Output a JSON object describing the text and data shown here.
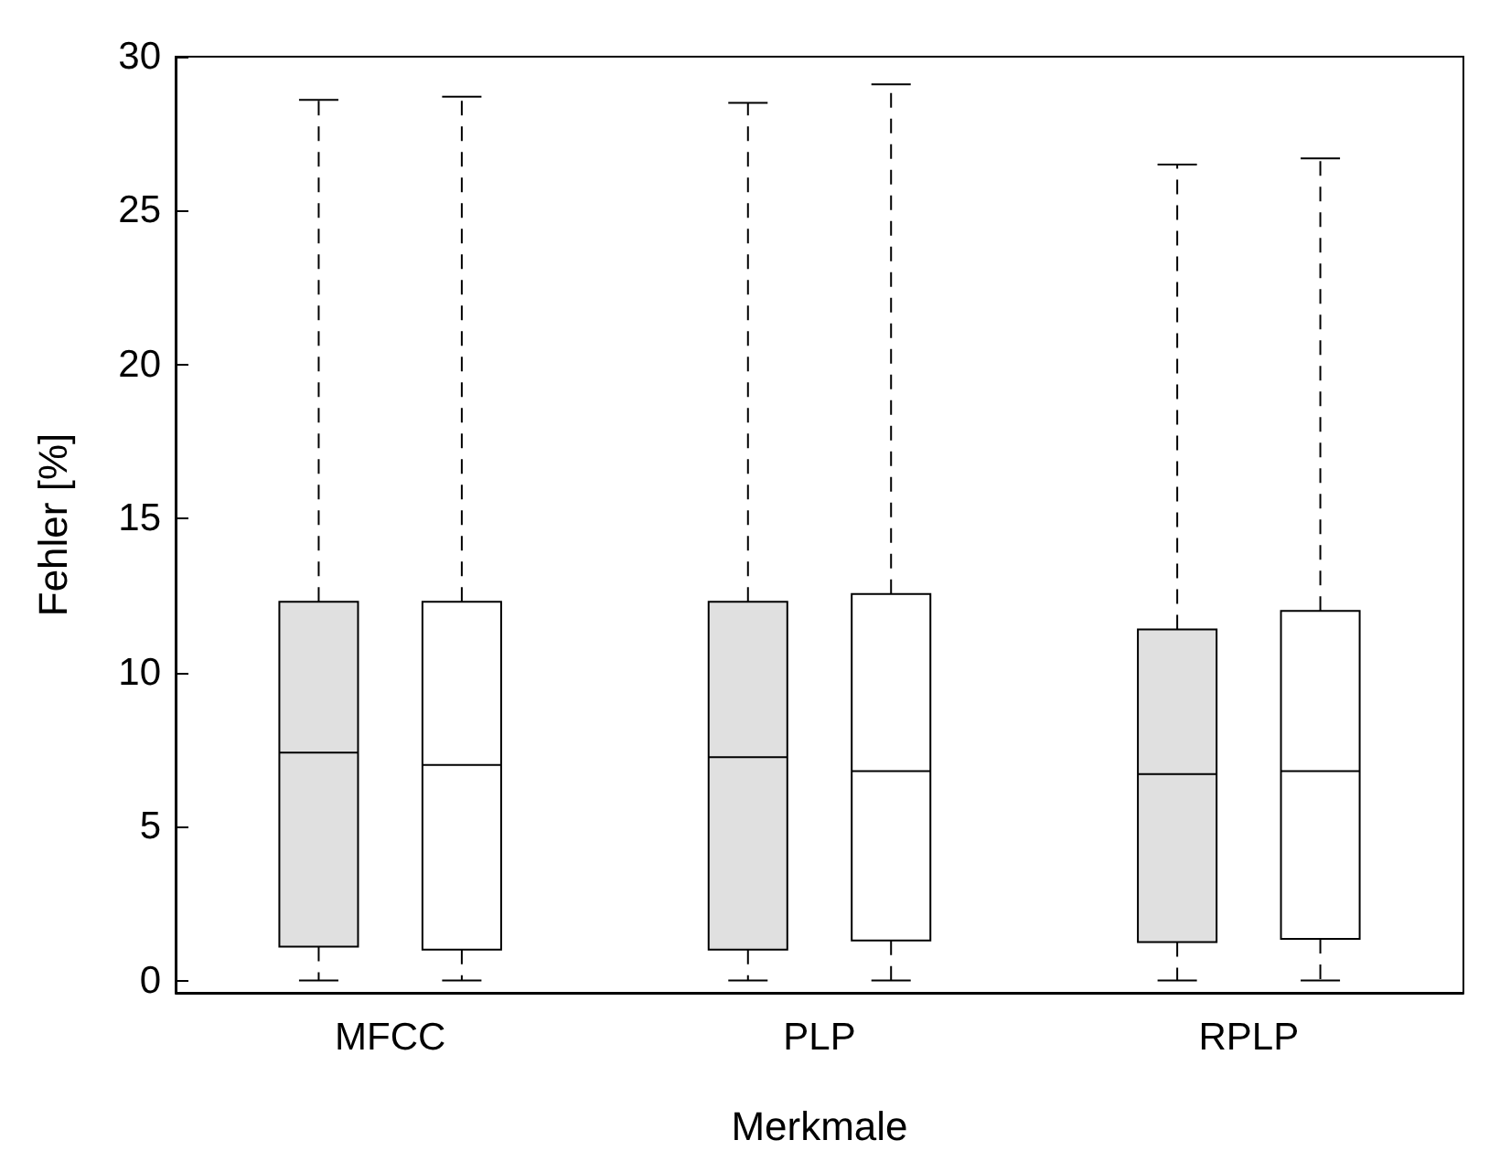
{
  "chart_data": {
    "type": "box",
    "xlabel": "Merkmale",
    "ylabel": "Fehler [%]",
    "categories": [
      "MFCC",
      "PLP",
      "RPLP"
    ],
    "ylim": [
      -0.4,
      30
    ],
    "yticks": [
      0,
      5,
      10,
      15,
      20,
      25,
      30
    ],
    "grid": false,
    "series": [
      {
        "color": "#e0e0e0",
        "boxes": [
          {
            "low": 0,
            "q1": 1.1,
            "median": 7.4,
            "q3": 12.3,
            "high": 28.6
          },
          {
            "low": 0,
            "q1": 1.0,
            "median": 7.25,
            "q3": 12.3,
            "high": 28.5
          },
          {
            "low": 0,
            "q1": 1.25,
            "median": 6.7,
            "q3": 11.4,
            "high": 26.5
          }
        ]
      },
      {
        "color": "#ffffff",
        "boxes": [
          {
            "low": 0,
            "q1": 1.0,
            "median": 7.0,
            "q3": 12.3,
            "high": 28.7
          },
          {
            "low": 0,
            "q1": 1.3,
            "median": 6.8,
            "q3": 12.55,
            "high": 29.1
          },
          {
            "low": 0,
            "q1": 1.35,
            "median": 6.8,
            "q3": 12.0,
            "high": 26.7
          }
        ]
      }
    ]
  }
}
